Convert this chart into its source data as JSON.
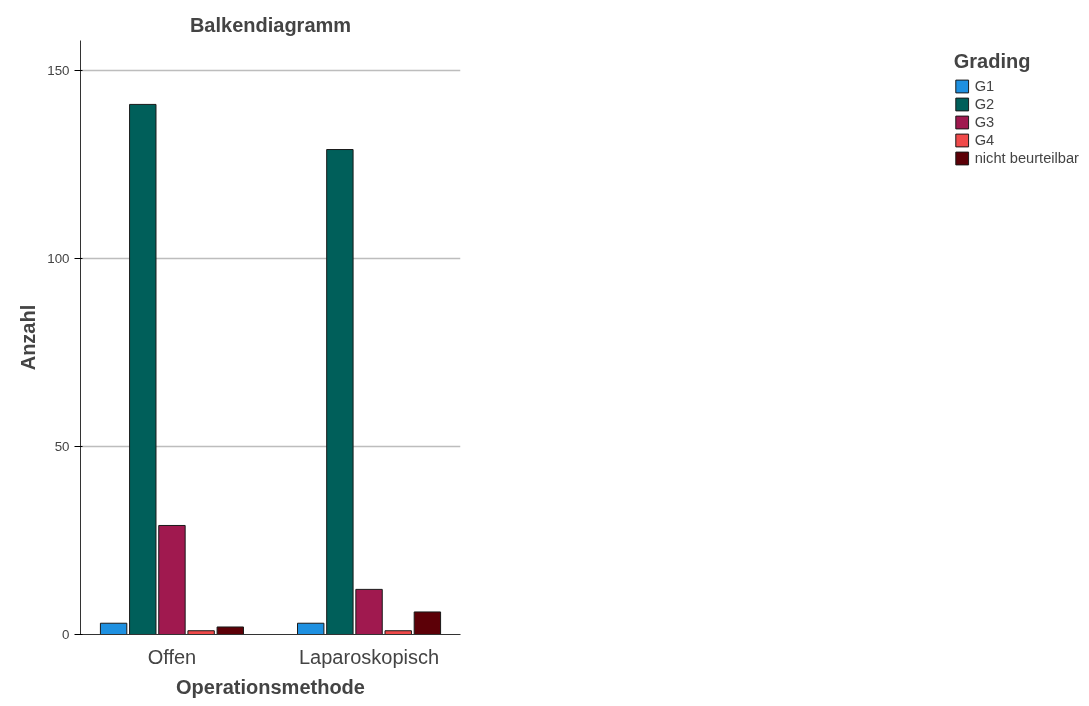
{
  "chart_data": {
    "type": "bar",
    "title": "Balkendiagramm",
    "xlabel": "Operationsmethode",
    "ylabel": "Anzahl",
    "legend_title": "Grading",
    "categories": [
      "Offen",
      "Laparoskopisch"
    ],
    "series": [
      {
        "name": "G1",
        "color": "#1e90e0",
        "values": [
          3,
          3
        ]
      },
      {
        "name": "G2",
        "color": "#005f5a",
        "values": [
          141,
          129
        ]
      },
      {
        "name": "G3",
        "color": "#a0194f",
        "values": [
          29,
          12
        ]
      },
      {
        "name": "G4",
        "color": "#f04a4a",
        "values": [
          1,
          1
        ]
      },
      {
        "name": "nicht beurteilbar",
        "color": "#5c0007",
        "values": [
          2,
          6
        ]
      }
    ],
    "ylim": [
      0,
      158
    ],
    "yticks": [
      0,
      50,
      100,
      150
    ],
    "grid": "y",
    "legend": "right"
  }
}
